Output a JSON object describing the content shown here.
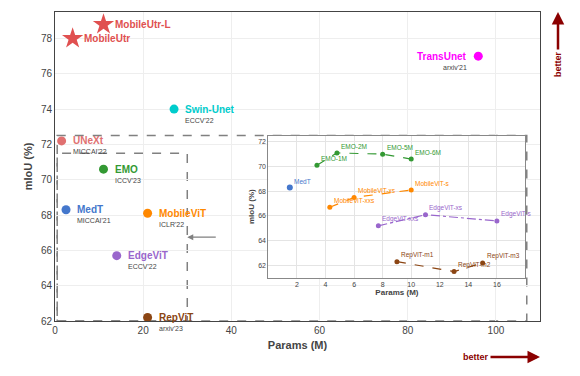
{
  "chart_data": [
    {
      "type": "scatter",
      "xlabel": "Params (M)",
      "ylabel": "mIoU (%)",
      "xlim": [
        0,
        110
      ],
      "ylim": [
        62,
        79.5
      ],
      "xticks": [
        0,
        20,
        40,
        60,
        80,
        100
      ],
      "yticks": [
        62,
        64,
        66,
        68,
        70,
        72,
        74,
        76,
        78
      ],
      "grid": true,
      "series": [
        {
          "name": "MobileUtr-L",
          "x": [
            11
          ],
          "values": [
            78.8
          ],
          "color": "#e05050",
          "marker": "star"
        },
        {
          "name": "MobileUtr",
          "x": [
            4
          ],
          "values": [
            78.0
          ],
          "color": "#e05050",
          "marker": "star"
        },
        {
          "name": "TransUnet",
          "x": [
            96
          ],
          "values": [
            77.0
          ],
          "color": "#ff00ff",
          "marker": "circle",
          "venue": "arxiv'21"
        },
        {
          "name": "Swin-Unet",
          "x": [
            27
          ],
          "values": [
            74.0
          ],
          "color": "#00cccc",
          "marker": "circle",
          "venue": "ECCV'22"
        },
        {
          "name": "UNeXt",
          "x": [
            1.5
          ],
          "values": [
            72.2
          ],
          "color": "#e07070",
          "marker": "circle",
          "venue": "MICCAI'22"
        },
        {
          "name": "EMO",
          "x": [
            11
          ],
          "values": [
            70.6
          ],
          "color": "#339933",
          "marker": "circle",
          "venue": "ICCV'23"
        },
        {
          "name": "MedT",
          "x": [
            2.5
          ],
          "values": [
            68.3
          ],
          "color": "#4477cc",
          "marker": "circle",
          "venue": "MICCAI'21"
        },
        {
          "name": "MobileViT",
          "x": [
            21
          ],
          "values": [
            68.1
          ],
          "color": "#ff8800",
          "marker": "circle",
          "venue": "ICLR'22"
        },
        {
          "name": "EdgeViT",
          "x": [
            14
          ],
          "values": [
            65.7
          ],
          "color": "#9966cc",
          "marker": "circle",
          "venue": "ECCV'22"
        },
        {
          "name": "RepViT",
          "x": [
            21
          ],
          "values": [
            62.2
          ],
          "color": "#8B4513",
          "marker": "circle",
          "venue": "arxiv'23"
        }
      ],
      "boxes": [
        {
          "x0": 0.5,
          "x1": 30,
          "y0": 62.0,
          "y1": 71.5,
          "color": "gray",
          "line_style": "dashed"
        },
        {
          "x0": 0.5,
          "x1": 107.0,
          "y0": 62.0,
          "y1": 72.5,
          "color": "gray",
          "line_style": "dashed"
        }
      ],
      "annotations": [
        {
          "text": "better",
          "axis": "y",
          "color": "darkred"
        },
        {
          "text": "better",
          "axis": "x",
          "color": "darkred"
        }
      ]
    },
    {
      "type": "line",
      "xlabel": "Params (M)",
      "ylabel": "mIoU (%)",
      "xlim": [
        0,
        18
      ],
      "ylim": [
        61,
        72.5
      ],
      "xticks": [
        2,
        4,
        6,
        8,
        10,
        12,
        14,
        16
      ],
      "yticks": [
        62,
        64,
        66,
        68,
        70,
        72
      ],
      "grid": true,
      "series": [
        {
          "x": [
            3.4,
            4.8,
            8.0,
            10.0
          ],
          "values": [
            70.1,
            71.1,
            71.0,
            70.6
          ],
          "labels": [
            "EMO-1M",
            "EMO-2M",
            "EMO-5M",
            "EMO-6M"
          ],
          "color": "#339933",
          "line_style": "dashed",
          "marker": "circle"
        },
        {
          "type": "scatter",
          "x": [
            1.5
          ],
          "values": [
            68.3
          ],
          "labels": [
            "MedT"
          ],
          "color": "#4477cc",
          "marker": "circle"
        },
        {
          "x": [
            4.3,
            6.0,
            10.0
          ],
          "values": [
            66.7,
            67.5,
            68.1
          ],
          "labels": [
            "MobileViT-xxs",
            "MobileViT-xs",
            "MobileViT-s"
          ],
          "color": "#ff8800",
          "line_style": "dashed",
          "marker": "circle"
        },
        {
          "x": [
            7.7,
            11.0,
            16.0
          ],
          "values": [
            65.2,
            66.1,
            65.6
          ],
          "labels": [
            "EdgeViT-xxs",
            "EdgeViT-xs",
            "EdgeViT-s"
          ],
          "color": "#9966cc",
          "line_style": "dashdot",
          "marker": "circle"
        },
        {
          "x": [
            9.0,
            13.0,
            15.0
          ],
          "values": [
            62.3,
            61.5,
            62.2
          ],
          "labels": [
            "RepViT-m1",
            "RepViT-m2",
            "RepViT-m3"
          ],
          "color": "#8B4513",
          "line_style": "dashed",
          "marker": "circle"
        }
      ]
    }
  ]
}
